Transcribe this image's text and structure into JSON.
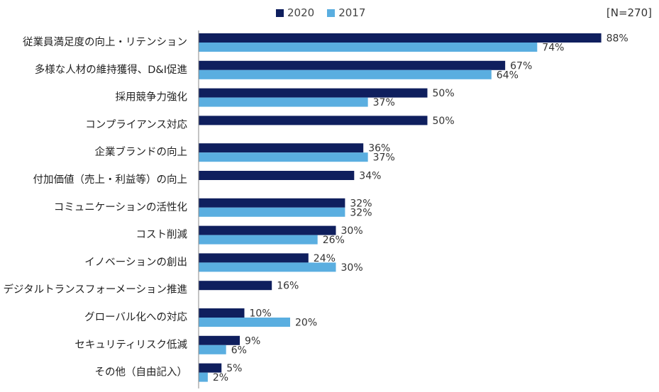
{
  "note": "[N=270]",
  "legend": [
    {
      "label": "2020",
      "color": "#0f1f5e"
    },
    {
      "label": "2017",
      "color": "#5aaee0"
    }
  ],
  "chart_data": {
    "type": "bar",
    "orientation": "horizontal",
    "value_suffix": "%",
    "categories": [
      "従業員満足度の向上・リテンション",
      "多様な人材の維持獲得、D&I促進",
      "採用競争力強化",
      "コンプライアンス対応",
      "企業ブランドの向上",
      "付加価値（売上・利益等）の向上",
      "コミュニケーションの活性化",
      "コスト削減",
      "イノベーションの創出",
      "デジタルトランスフォーメーション推進",
      "グローバル化への対応",
      "セキュリティリスク低減",
      "その他（自由記入）"
    ],
    "series": [
      {
        "name": "2020",
        "color": "#0f1f5e",
        "values": [
          88,
          67,
          50,
          50,
          36,
          34,
          32,
          30,
          24,
          16,
          10,
          9,
          5
        ]
      },
      {
        "name": "2017",
        "color": "#5aaee0",
        "values": [
          74,
          64,
          37,
          null,
          37,
          null,
          32,
          26,
          30,
          null,
          20,
          6,
          2
        ]
      }
    ]
  }
}
